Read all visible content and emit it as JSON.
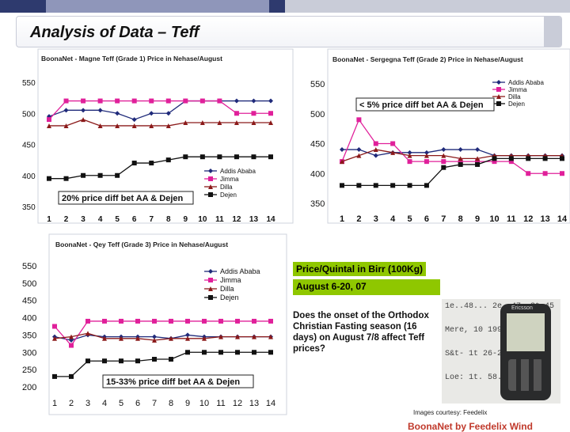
{
  "page": {
    "title": "Analysis of Data – Teff",
    "colors": {
      "stripe_dark": "#2e3a6e",
      "stripe_mid": "#8f96ba",
      "stripe_light": "#c9ccd8",
      "highlight": "#8fc700"
    }
  },
  "chart_data": [
    {
      "type": "line",
      "title": "BoonaNet - Magne Teff (Grade 1) Price in Nehase/August",
      "categories": [
        "1",
        "2",
        "3",
        "4",
        "5",
        "6",
        "7",
        "8",
        "9",
        "10",
        "11",
        "12",
        "13",
        "14"
      ],
      "y_ticks": [
        "550",
        "500",
        "450",
        "400",
        "350"
      ],
      "ylim": [
        350,
        550
      ],
      "legend_position": "inside-bottom-right",
      "series": [
        {
          "name": "Addis Ababa",
          "color": "#1f2a7a",
          "marker": "diamond",
          "values": [
            495,
            505,
            505,
            505,
            500,
            490,
            500,
            500,
            520,
            520,
            520,
            520,
            520,
            520
          ]
        },
        {
          "name": "Jimma",
          "color": "#e0209a",
          "marker": "square",
          "values": [
            490,
            520,
            520,
            520,
            520,
            520,
            520,
            520,
            520,
            520,
            520,
            500,
            500,
            500
          ]
        },
        {
          "name": "Dilla",
          "color": "#8b1a1a",
          "marker": "triangle",
          "values": [
            480,
            480,
            490,
            480,
            480,
            480,
            480,
            480,
            485,
            485,
            485,
            485,
            485,
            485
          ]
        },
        {
          "name": "Dejen",
          "color": "#111111",
          "marker": "square",
          "values": [
            395,
            395,
            400,
            400,
            400,
            420,
            420,
            425,
            430,
            430,
            430,
            430,
            430,
            430
          ]
        }
      ],
      "annotation": "20% price diff bet AA & Dejen"
    },
    {
      "type": "line",
      "title": "BoonaNet - Sergegna Teff (Grade 2) Price in Nehase/August",
      "categories": [
        "1",
        "2",
        "3",
        "4",
        "5",
        "6",
        "7",
        "8",
        "9",
        "10",
        "11",
        "12",
        "13",
        "14"
      ],
      "y_ticks": [
        "550",
        "500",
        "450",
        "400",
        "350"
      ],
      "ylim": [
        350,
        550
      ],
      "legend_position": "top-right",
      "series": [
        {
          "name": "Addis Ababa",
          "color": "#1f2a7a",
          "marker": "diamond",
          "values": [
            440,
            440,
            430,
            435,
            435,
            435,
            440,
            440,
            440,
            430,
            430,
            430,
            430,
            430
          ]
        },
        {
          "name": "Jimma",
          "color": "#e0209a",
          "marker": "square",
          "values": [
            420,
            490,
            450,
            450,
            420,
            420,
            420,
            420,
            420,
            420,
            420,
            400,
            400,
            400
          ]
        },
        {
          "name": "Dilla",
          "color": "#8b1a1a",
          "marker": "triangle",
          "values": [
            420,
            430,
            440,
            435,
            430,
            430,
            430,
            425,
            425,
            430,
            430,
            430,
            430,
            430
          ]
        },
        {
          "name": "Dejen",
          "color": "#111111",
          "marker": "square",
          "values": [
            380,
            380,
            380,
            380,
            380,
            380,
            410,
            415,
            415,
            425,
            425,
            425,
            425,
            425
          ]
        }
      ],
      "annotation": "< 5% price diff bet AA & Dejen"
    },
    {
      "type": "line",
      "title": "BoonaNet - Qey Teff (Grade 3) Price in Nehase/August",
      "categories": [
        "1",
        "2",
        "3",
        "4",
        "5",
        "6",
        "7",
        "8",
        "9",
        "10",
        "11",
        "12",
        "13",
        "14"
      ],
      "y_ticks": [
        "550",
        "500",
        "450",
        "400",
        "350",
        "300",
        "250",
        "200"
      ],
      "ylim": [
        200,
        550
      ],
      "legend_position": "top-right",
      "series": [
        {
          "name": "Addis Ababa",
          "color": "#1f2a7a",
          "marker": "diamond",
          "values": [
            345,
            335,
            350,
            345,
            345,
            345,
            345,
            340,
            350,
            345,
            345,
            345,
            345,
            345
          ]
        },
        {
          "name": "Jimma",
          "color": "#e0209a",
          "marker": "square",
          "values": [
            375,
            320,
            390,
            390,
            390,
            390,
            390,
            390,
            390,
            390,
            390,
            390,
            390,
            390
          ]
        },
        {
          "name": "Dilla",
          "color": "#8b1a1a",
          "marker": "triangle",
          "values": [
            340,
            345,
            355,
            340,
            340,
            340,
            335,
            340,
            340,
            340,
            345,
            345,
            345,
            345
          ]
        },
        {
          "name": "Dejen",
          "color": "#111111",
          "marker": "square",
          "values": [
            230,
            230,
            275,
            275,
            275,
            275,
            280,
            280,
            300,
            300,
            300,
            300,
            300,
            300
          ]
        }
      ],
      "annotation": "15-33% price diff bet AA & Dejen"
    }
  ],
  "info": {
    "unit_label": "Price/Quintal in Birr (100Kg)",
    "date_label": "August 6-20, 07",
    "question": "Does the onset of the Orthodox Christian Fasting season (16 days) on August 7/8 affect Teff prices?"
  },
  "photo": {
    "paper_lines": [
      "1e..48... 2e..47 .3t 45",
      "Mere, 10 1999",
      "S&t- 1t 26-25 2t",
      "Loe: 1t. 58.82 2t"
    ],
    "phone_brand": "Ericsson"
  },
  "credit": "Images courtesy: Feedelix",
  "footer": "BoonaNet by Feedelix Wind"
}
